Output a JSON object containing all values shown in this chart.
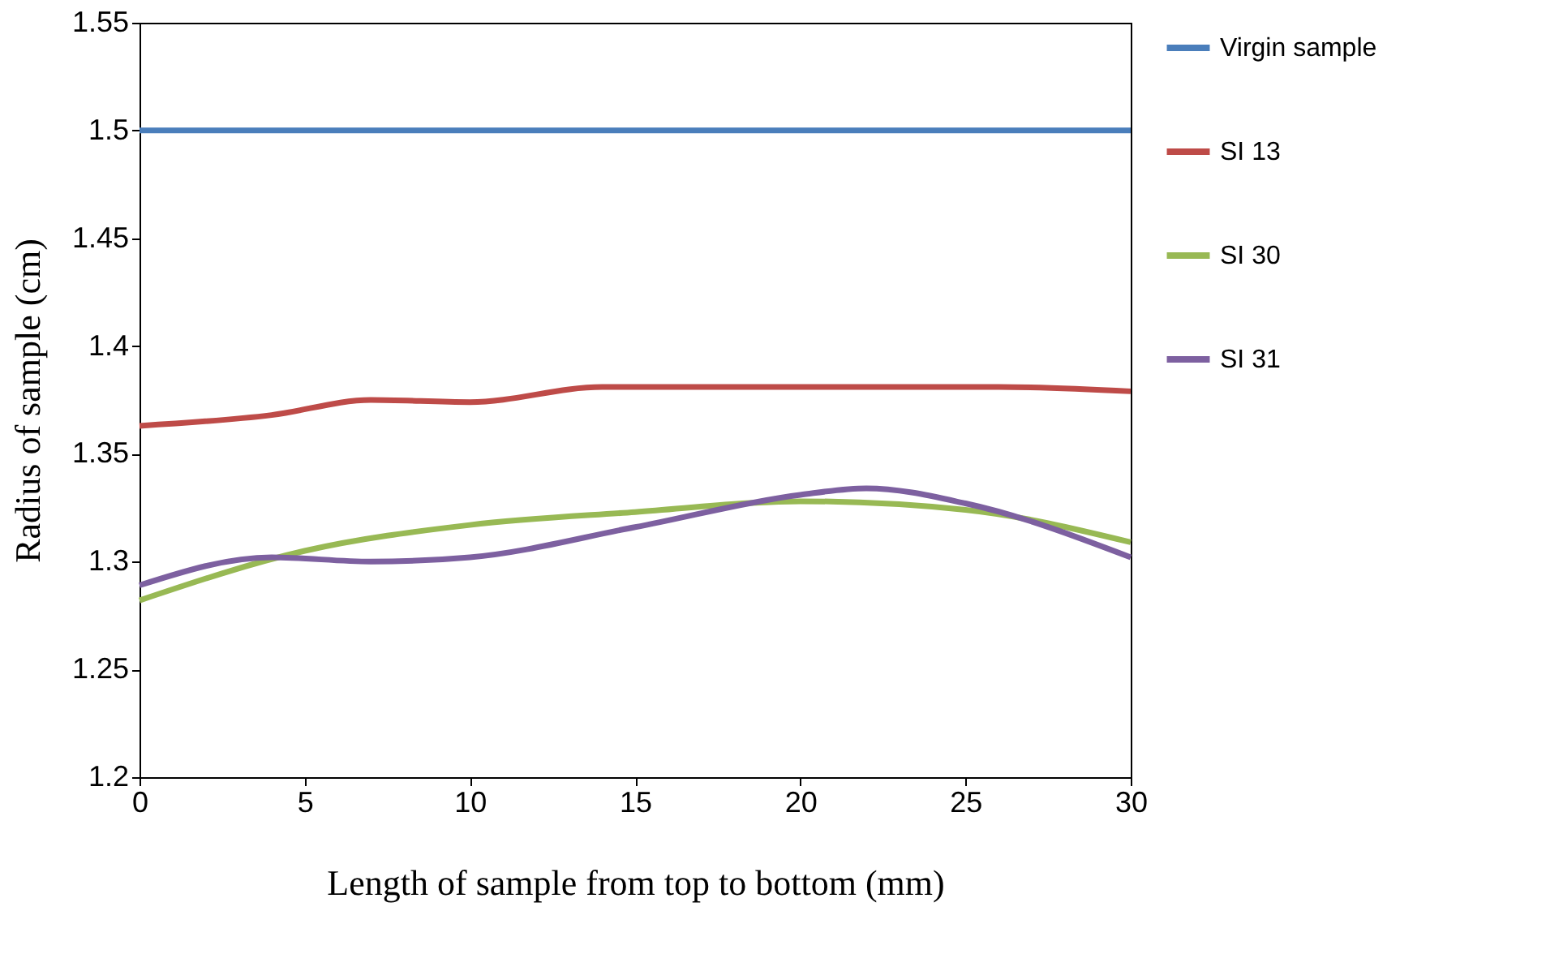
{
  "chart_data": {
    "type": "line",
    "xlabel": "Length of sample from top to bottom (mm)",
    "ylabel": "Radius of sample (cm)",
    "xlim": [
      0,
      30
    ],
    "xticks": [
      0,
      5,
      10,
      15,
      20,
      25,
      30
    ],
    "ylim": [
      1.2,
      1.55
    ],
    "yticks": [
      1.2,
      1.25,
      1.3,
      1.35,
      1.4,
      1.45,
      1.5,
      1.55
    ],
    "grid": false,
    "legend": "top right",
    "marker": "none",
    "line_style": "solid",
    "series": [
      {
        "name": "Virgin sample",
        "color": "#4a7ebb",
        "x": [
          0,
          5,
          10,
          15,
          20,
          25,
          30
        ],
        "values": [
          1.5,
          1.5,
          1.5,
          1.5,
          1.5,
          1.5,
          1.5
        ]
      },
      {
        "name": "SI 13",
        "color": "#be4b48",
        "x": [
          0,
          4,
          7,
          10,
          14,
          20,
          26,
          30
        ],
        "values": [
          1.363,
          1.368,
          1.375,
          1.374,
          1.381,
          1.381,
          1.381,
          1.379
        ]
      },
      {
        "name": "SI 30",
        "color": "#98b954",
        "x": [
          0,
          5,
          10,
          15,
          20,
          25,
          30
        ],
        "values": [
          1.282,
          1.305,
          1.317,
          1.323,
          1.328,
          1.324,
          1.309
        ]
      },
      {
        "name": "SI 31",
        "color": "#7d60a0",
        "x": [
          0,
          4,
          7,
          10,
          15,
          20,
          22,
          25,
          30
        ],
        "values": [
          1.289,
          1.302,
          1.3,
          1.302,
          1.316,
          1.331,
          1.334,
          1.327,
          1.302
        ]
      }
    ]
  }
}
